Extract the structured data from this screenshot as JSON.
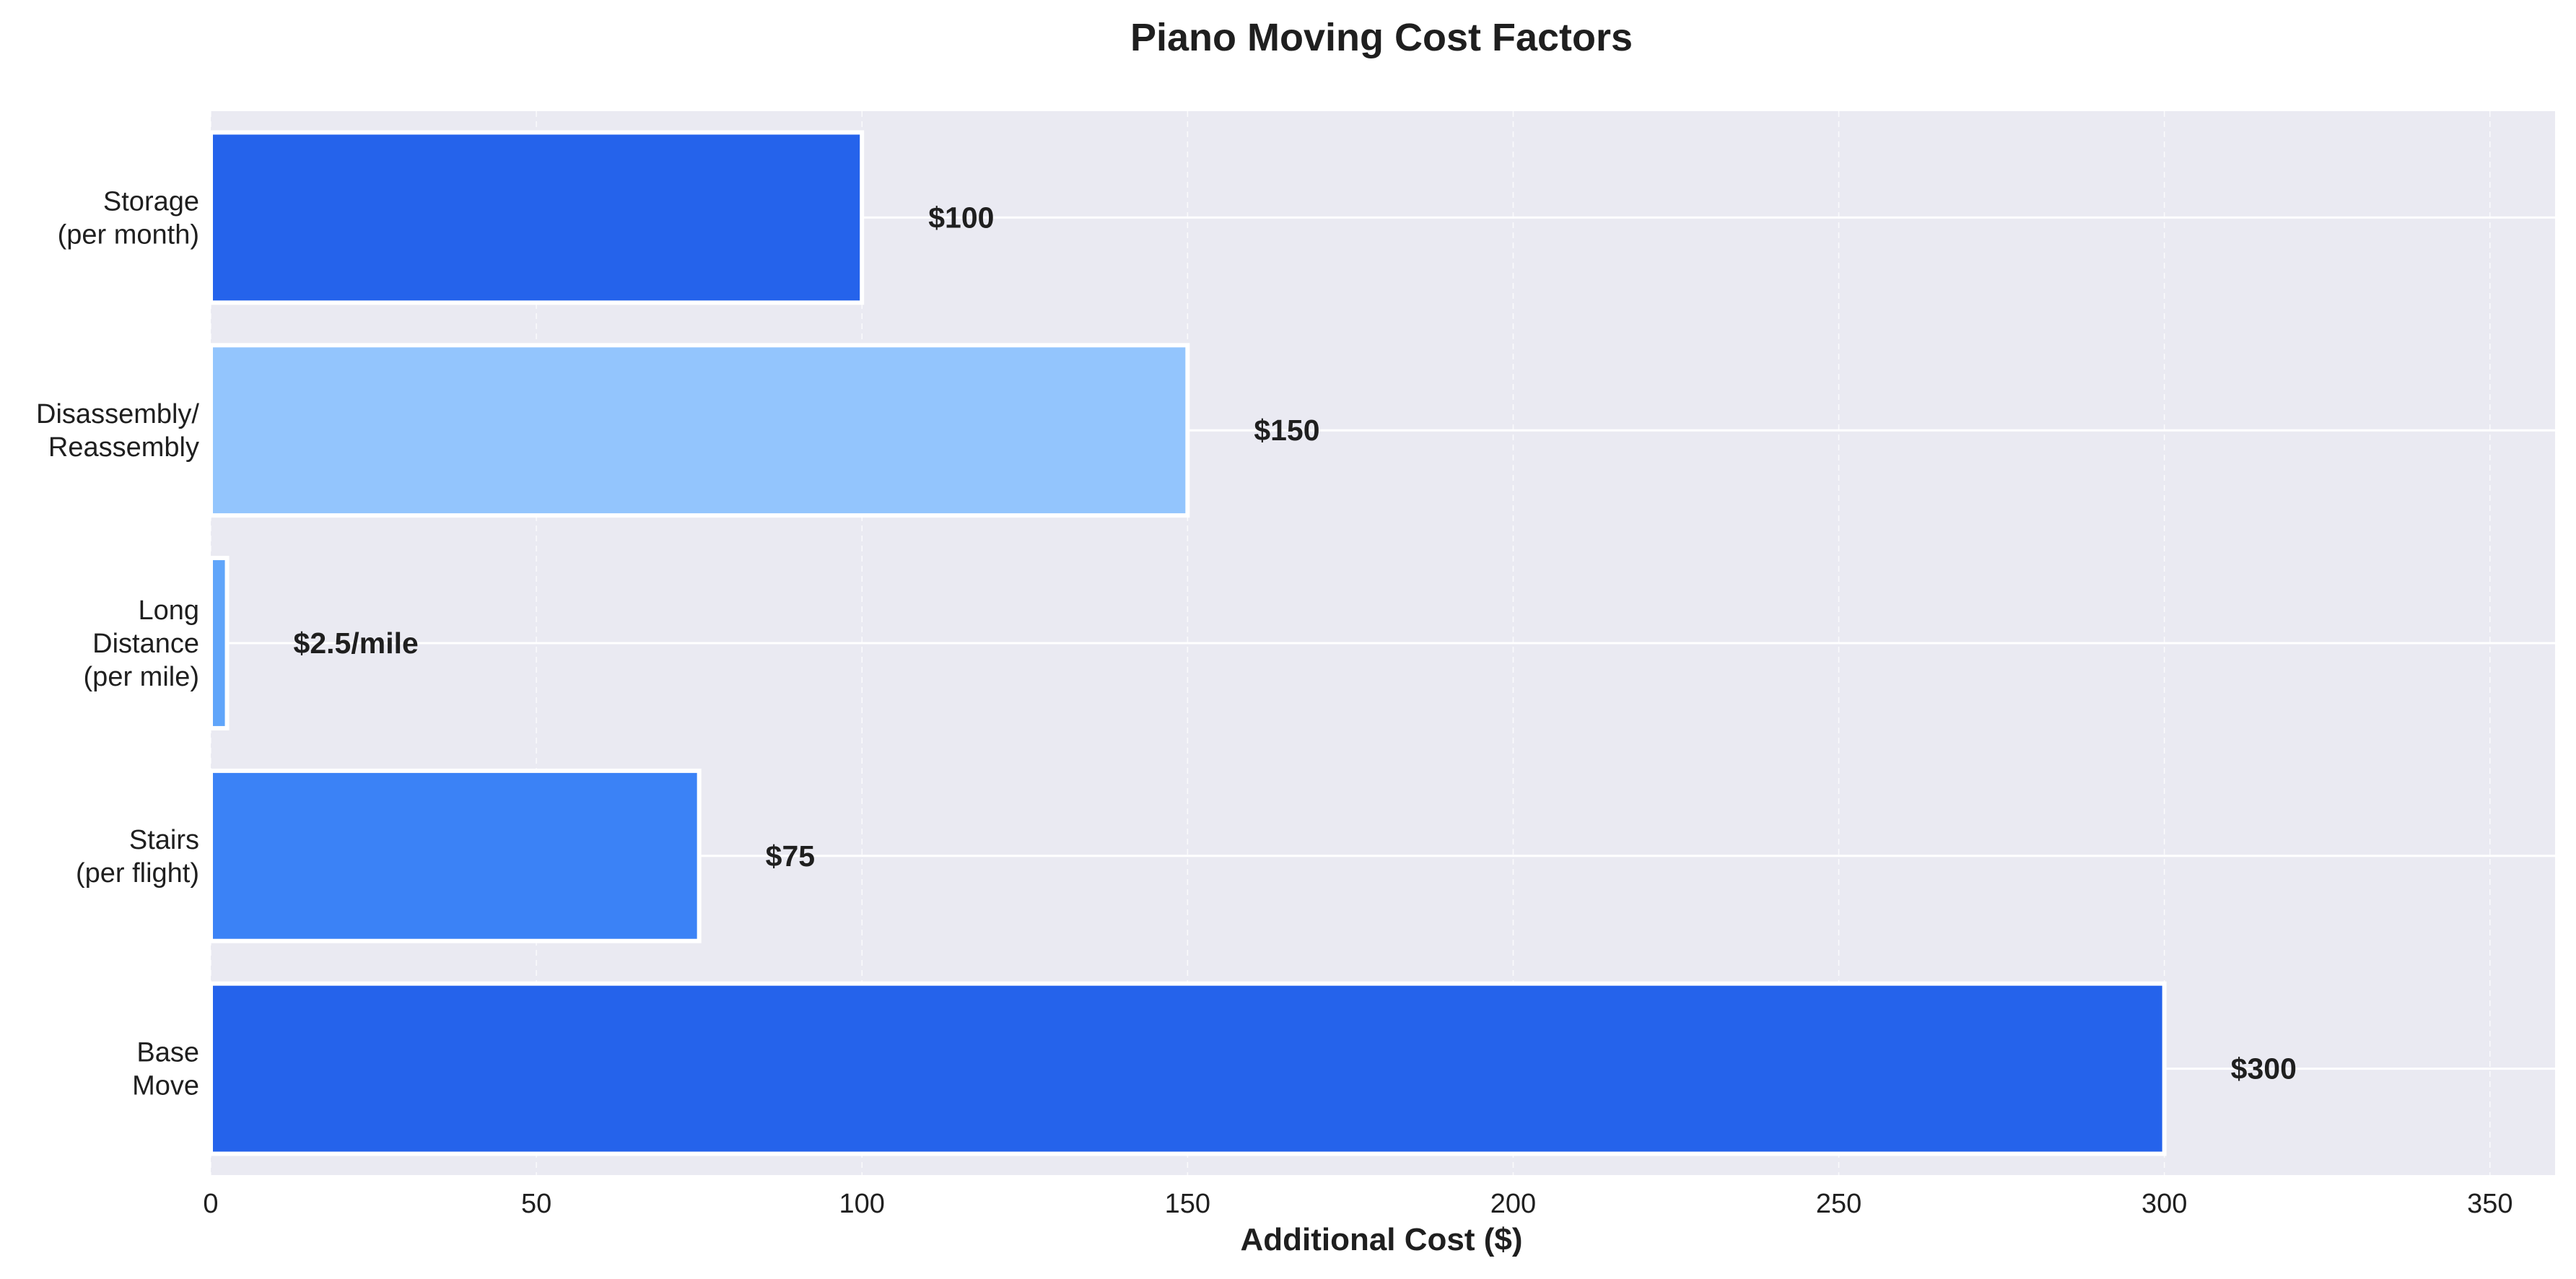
{
  "chart_data": {
    "type": "bar",
    "orientation": "horizontal",
    "title": "Piano Moving Cost Factors",
    "xlabel": "Additional Cost ($)",
    "ylabel": "",
    "xlim": [
      0,
      360
    ],
    "x_ticks": [
      0,
      50,
      100,
      150,
      200,
      250,
      300,
      350
    ],
    "grid": true,
    "categories": [
      [
        "Base",
        "Move"
      ],
      [
        "Stairs",
        "(per flight)"
      ],
      [
        "Long",
        "Distance",
        "(per mile)"
      ],
      [
        "Disassembly/",
        "Reassembly"
      ],
      [
        "Storage",
        "(per month)"
      ]
    ],
    "values": [
      300,
      75,
      2.5,
      150,
      100
    ],
    "data_labels": [
      "$300",
      "$75",
      "$2.5/mile",
      "$150",
      "$100"
    ],
    "colors": [
      "#2563eb",
      "#3b82f6",
      "#60a5fa",
      "#93c5fd",
      "#2563eb"
    ],
    "plot_background": "#eaeaf2",
    "grid_color": "#ffffff"
  }
}
